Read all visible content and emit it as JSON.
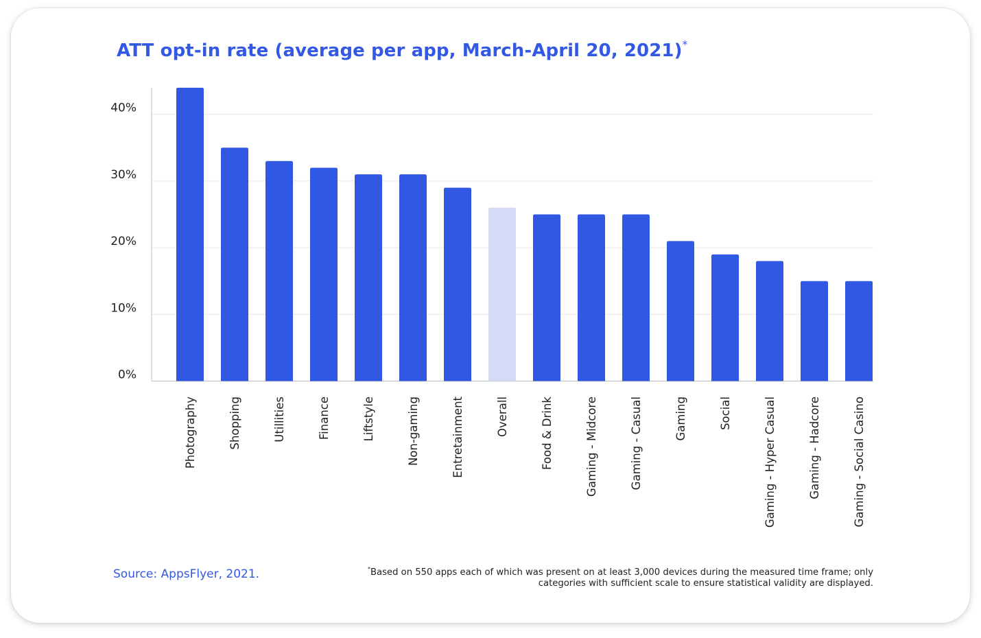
{
  "title": "ATT opt-in rate (average per app, March-April 20, 2021)",
  "title_marker": "*",
  "source": "Source: AppsFlyer, 2021.",
  "footnote_marker": "*",
  "footnote": "Based on 550 apps each of which was present on at least 3,000 devices during the measured time frame;  only categories with sufficient scale to ensure statistical validity are displayed.",
  "colors": {
    "bar": "#3158e3",
    "highlight_bar": "#d3dbf7",
    "title": "#3358e4",
    "grid": "#e6e6e6",
    "axis": "#bdbdbd",
    "text": "#1f1f1f"
  },
  "chart_data": {
    "type": "bar",
    "title": "ATT opt-in rate (average per app, March-April 20, 2021)",
    "xlabel": "",
    "ylabel": "",
    "ylim": [
      0,
      44
    ],
    "yticks": [
      0,
      10,
      20,
      30,
      40
    ],
    "ytick_labels": [
      "0%",
      "10%",
      "20%",
      "30%",
      "40%"
    ],
    "grid": true,
    "highlight": "Overall",
    "categories": [
      "Photography",
      "Shopping",
      "Utillities",
      "Finance",
      "Liftstyle",
      "Non-gaming",
      "Entretainment",
      "Overall",
      "Food & Drink",
      "Gaming - Midcore",
      "Gaming - Casual",
      "Gaming",
      "Social",
      "Gaming - Hyper Casual",
      "Gaming - Hadcore",
      "Gaming - Social Casino"
    ],
    "values": [
      44,
      35,
      33,
      32,
      31,
      31,
      29,
      26,
      25,
      25,
      25,
      21,
      19,
      18,
      15,
      15
    ]
  }
}
